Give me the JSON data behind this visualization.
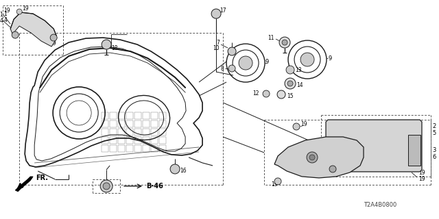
{
  "bg_color": "#ffffff",
  "line_color": "#1a1a1a",
  "diagram_code": "T2A4B0800",
  "fig_w": 6.4,
  "fig_h": 3.2,
  "dpi": 100
}
